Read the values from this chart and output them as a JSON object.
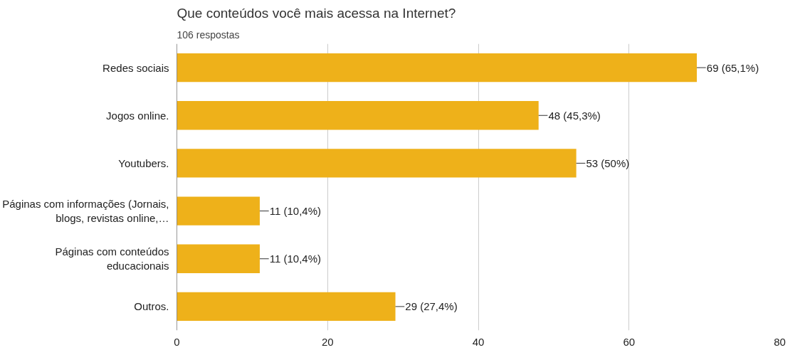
{
  "chart_data": {
    "type": "bar",
    "orientation": "horizontal",
    "title": "Que conteúdos você mais acessa na Internet?",
    "subtitle": "106 respostas",
    "categories": [
      "Redes sociais",
      "Jogos online.",
      "Youtubers.",
      "Páginas com informações (Jornais, blogs, revistas online,…",
      "Páginas com conteúdos educacionais",
      "Outros."
    ],
    "values": [
      69,
      48,
      53,
      11,
      11,
      29
    ],
    "color": "#eeb11a",
    "value_labels": [
      "69 (65,1%)",
      "48 (45,3%)",
      "53 (50%)",
      "11 (10,4%)",
      "11 (10,4%)",
      "29 (27,4%)"
    ],
    "xlim": [
      0,
      80
    ],
    "xticks": [
      0,
      20,
      40,
      60,
      80
    ],
    "grid": "x"
  }
}
